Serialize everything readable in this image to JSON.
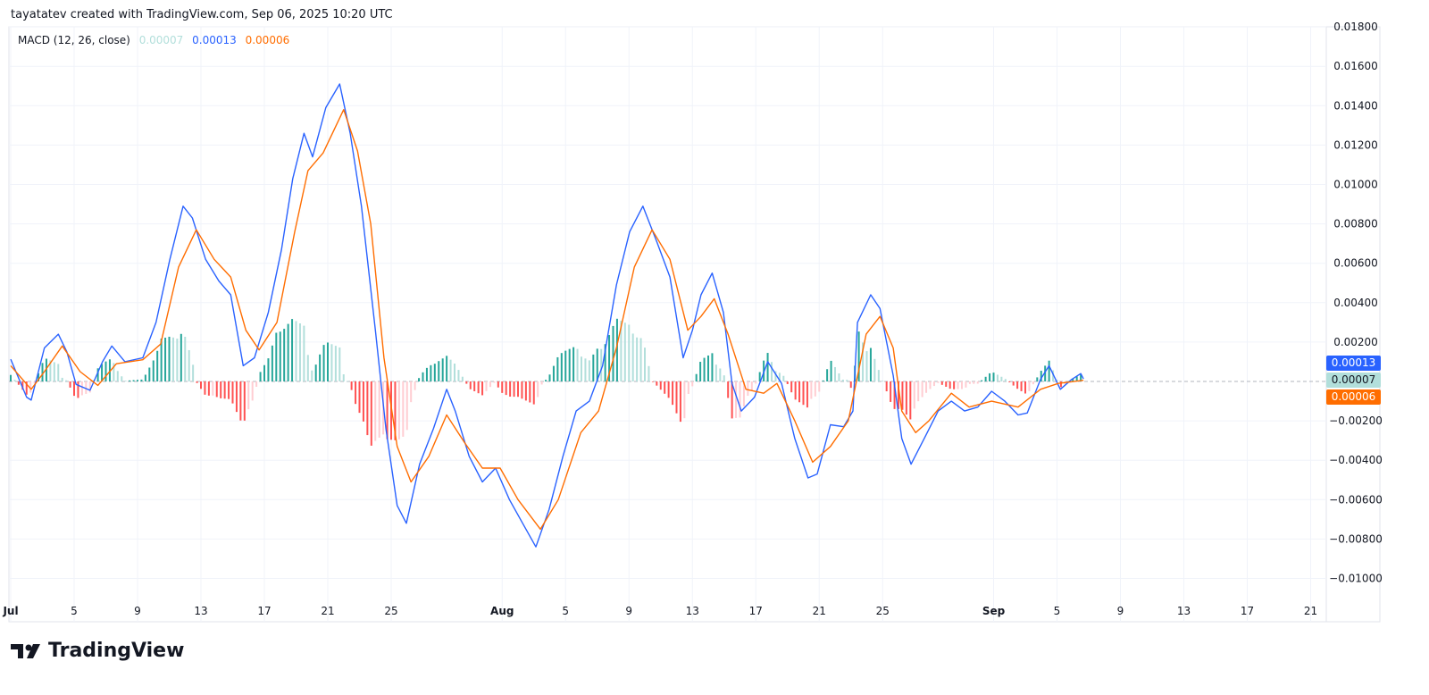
{
  "credit": "tayatatev created with TradingView.com, Sep 06, 2025 10:20 UTC",
  "legend": {
    "label": "MACD (12, 26, close)",
    "histogram": "0.00007",
    "macd": "0.00013",
    "signal": "0.00006"
  },
  "badges": {
    "macd": "0.00013",
    "histogram": "0.00007",
    "signal": "0.00006"
  },
  "logo": "TradingView",
  "colors": {
    "macd": "#2962ff",
    "signal": "#ff6d00",
    "hist_pos_strong": "#26a69a",
    "hist_pos_weak": "#b2dfdb",
    "hist_neg_strong": "#ff5252",
    "hist_neg_weak": "#ffcdd2",
    "grid": "#f0f3fa"
  },
  "chart_data": {
    "type": "line",
    "title": "MACD (12, 26, close)",
    "xlim": [
      "2025-07-01T00:00",
      "2025-09-22T00:00"
    ],
    "ylim": [
      -0.0108,
      0.018
    ],
    "grid": true,
    "y_ticks": [
      {
        "value": 0.018,
        "label": "0.01800"
      },
      {
        "value": 0.016,
        "label": "0.01600"
      },
      {
        "value": 0.014,
        "label": "0.01400"
      },
      {
        "value": 0.012,
        "label": "0.01200"
      },
      {
        "value": 0.01,
        "label": "0.01000"
      },
      {
        "value": 0.008,
        "label": "0.00800"
      },
      {
        "value": 0.006,
        "label": "0.00600"
      },
      {
        "value": 0.004,
        "label": "0.00400"
      },
      {
        "value": 0.002,
        "label": "0.00200"
      },
      {
        "value": -0.002,
        "label": "−0.00200"
      },
      {
        "value": -0.004,
        "label": "−0.00400"
      },
      {
        "value": -0.006,
        "label": "−0.00600"
      },
      {
        "value": -0.008,
        "label": "−0.00800"
      },
      {
        "value": -0.01,
        "label": "−0.01000"
      }
    ],
    "x_ticks": [
      {
        "date": "2025-07-01",
        "label": "Jul",
        "bold": true
      },
      {
        "date": "2025-07-05",
        "label": "5"
      },
      {
        "date": "2025-07-09",
        "label": "9"
      },
      {
        "date": "2025-07-13",
        "label": "13"
      },
      {
        "date": "2025-07-17",
        "label": "17"
      },
      {
        "date": "2025-07-21",
        "label": "21"
      },
      {
        "date": "2025-07-25",
        "label": "25"
      },
      {
        "date": "2025-08-01",
        "label": "Aug",
        "bold": true
      },
      {
        "date": "2025-08-05",
        "label": "5"
      },
      {
        "date": "2025-08-09",
        "label": "9"
      },
      {
        "date": "2025-08-13",
        "label": "13"
      },
      {
        "date": "2025-08-17",
        "label": "17"
      },
      {
        "date": "2025-08-21",
        "label": "21"
      },
      {
        "date": "2025-08-25",
        "label": "25"
      },
      {
        "date": "2025-09-01",
        "label": "Sep",
        "bold": true
      },
      {
        "date": "2025-09-05",
        "label": "5"
      },
      {
        "date": "2025-09-09",
        "label": "9"
      },
      {
        "date": "2025-09-13",
        "label": "13"
      },
      {
        "date": "2025-09-17",
        "label": "17"
      },
      {
        "date": "2025-09-21",
        "label": "21"
      }
    ],
    "series": [
      {
        "name": "MACD",
        "color": "#2962ff",
        "points": [
          [
            "2025-07-01T00:00",
            0.00113
          ],
          [
            "2025-07-02T00:00",
            -0.0008
          ],
          [
            "2025-07-02T07:00",
            -0.00095
          ],
          [
            "2025-07-03T03:00",
            0.0017
          ],
          [
            "2025-07-04T00:00",
            0.0024
          ],
          [
            "2025-07-04T13:00",
            0.0015
          ],
          [
            "2025-07-05T03:00",
            -0.00015
          ],
          [
            "2025-07-06T00:00",
            -0.00045
          ],
          [
            "2025-07-06T19:00",
            0.001
          ],
          [
            "2025-07-07T09:00",
            0.0018
          ],
          [
            "2025-07-08T05:00",
            0.001
          ],
          [
            "2025-07-09T08:00",
            0.0012
          ],
          [
            "2025-07-10T04:00",
            0.003
          ],
          [
            "2025-07-11T01:00",
            0.0062
          ],
          [
            "2025-07-11T21:00",
            0.0089
          ],
          [
            "2025-07-12T11:00",
            0.0083
          ],
          [
            "2025-07-13T07:00",
            0.0062
          ],
          [
            "2025-07-14T03:00",
            0.0051
          ],
          [
            "2025-07-14T21:00",
            0.0044
          ],
          [
            "2025-07-15T16:00",
            0.0008
          ],
          [
            "2025-07-16T09:00",
            0.0012
          ],
          [
            "2025-07-17T06:00",
            0.0035
          ],
          [
            "2025-07-18T02:00",
            0.0067
          ],
          [
            "2025-07-18T19:00",
            0.0103
          ],
          [
            "2025-07-19T12:00",
            0.0126
          ],
          [
            "2025-07-20T01:00",
            0.0114
          ],
          [
            "2025-07-20T21:00",
            0.0139
          ],
          [
            "2025-07-21T18:00",
            0.0151
          ],
          [
            "2025-07-22T10:00",
            0.0126
          ],
          [
            "2025-07-23T03:00",
            0.0089
          ],
          [
            "2025-07-24T00:00",
            0.0026
          ],
          [
            "2025-07-24T16:00",
            -0.0024
          ],
          [
            "2025-07-25T09:00",
            -0.0063
          ],
          [
            "2025-07-25T23:00",
            -0.0072
          ],
          [
            "2025-07-26T19:00",
            -0.0042
          ],
          [
            "2025-07-27T16:00",
            -0.0024
          ],
          [
            "2025-07-28T12:00",
            -0.0004
          ],
          [
            "2025-07-29T01:00",
            -0.0015
          ],
          [
            "2025-07-29T22:00",
            -0.0038
          ],
          [
            "2025-07-30T18:00",
            -0.0051
          ],
          [
            "2025-07-31T14:00",
            -0.0044
          ],
          [
            "2025-08-01T11:00",
            -0.006
          ],
          [
            "2025-08-02T07:00",
            -0.0072
          ],
          [
            "2025-08-03T03:00",
            -0.0084
          ],
          [
            "2025-08-03T23:00",
            -0.0065
          ],
          [
            "2025-08-04T20:00",
            -0.0038
          ],
          [
            "2025-08-05T16:00",
            -0.0015
          ],
          [
            "2025-08-06T12:00",
            -0.001
          ],
          [
            "2025-08-07T08:00",
            0.0008
          ],
          [
            "2025-08-08T05:00",
            0.0049
          ],
          [
            "2025-08-09T01:00",
            0.0076
          ],
          [
            "2025-08-09T21:00",
            0.0089
          ],
          [
            "2025-08-10T18:00",
            0.0071
          ],
          [
            "2025-08-11T14:00",
            0.0053
          ],
          [
            "2025-08-12T10:00",
            0.0012
          ],
          [
            "2025-08-13T00:00",
            0.0026
          ],
          [
            "2025-08-13T13:00",
            0.0044
          ],
          [
            "2025-08-14T06:00",
            0.0055
          ],
          [
            "2025-08-14T23:00",
            0.0035
          ],
          [
            "2025-08-15T12:00",
            -0.0001
          ],
          [
            "2025-08-16T02:00",
            -0.0015
          ],
          [
            "2025-08-16T22:00",
            -0.0008
          ],
          [
            "2025-08-17T18:00",
            0.001
          ],
          [
            "2025-08-18T15:00",
            -0.0001
          ],
          [
            "2025-08-19T11:00",
            -0.0029
          ],
          [
            "2025-08-20T07:00",
            -0.0049
          ],
          [
            "2025-08-20T21:00",
            -0.0047
          ],
          [
            "2025-08-21T17:00",
            -0.0022
          ],
          [
            "2025-08-22T13:00",
            -0.0023
          ],
          [
            "2025-08-23T03:00",
            -0.0015
          ],
          [
            "2025-08-23T10:00",
            0.003
          ],
          [
            "2025-08-24T06:00",
            0.0044
          ],
          [
            "2025-08-24T20:00",
            0.0037
          ],
          [
            "2025-08-25T16:00",
            0.0003
          ],
          [
            "2025-08-26T05:00",
            -0.0029
          ],
          [
            "2025-08-26T19:00",
            -0.0042
          ],
          [
            "2025-08-27T15:00",
            -0.0029
          ],
          [
            "2025-08-28T12:00",
            -0.0015
          ],
          [
            "2025-08-29T08:00",
            -0.001
          ],
          [
            "2025-08-30T04:00",
            -0.0015
          ],
          [
            "2025-08-31T00:00",
            -0.0013
          ],
          [
            "2025-08-31T21:00",
            -0.0005
          ],
          [
            "2025-09-01T17:00",
            -0.001
          ],
          [
            "2025-09-02T13:00",
            -0.0017
          ],
          [
            "2025-09-03T03:00",
            -0.0016
          ],
          [
            "2025-09-03T23:00",
            0.0001
          ],
          [
            "2025-09-04T12:00",
            0.0008
          ],
          [
            "2025-09-05T05:00",
            -0.0004
          ],
          [
            "2025-09-05T22:00",
            0.0001
          ],
          [
            "2025-09-06T12:00",
            0.0004
          ],
          [
            "2025-09-06T16:00",
            0.00013
          ]
        ]
      },
      {
        "name": "Signal",
        "color": "#ff6d00",
        "points": [
          [
            "2025-07-01T00:00",
            0.0008
          ],
          [
            "2025-07-02T07:00",
            -0.0004
          ],
          [
            "2025-07-03T03:00",
            0.0005
          ],
          [
            "2025-07-04T06:00",
            0.0018
          ],
          [
            "2025-07-05T09:00",
            0.0005
          ],
          [
            "2025-07-06T12:00",
            -0.0002
          ],
          [
            "2025-07-07T16:00",
            0.0009
          ],
          [
            "2025-07-09T08:00",
            0.0011
          ],
          [
            "2025-07-10T11:00",
            0.0019
          ],
          [
            "2025-07-11T14:00",
            0.0058
          ],
          [
            "2025-07-12T17:00",
            0.0077
          ],
          [
            "2025-07-13T20:00",
            0.0062
          ],
          [
            "2025-07-14T21:00",
            0.0053
          ],
          [
            "2025-07-15T20:00",
            0.0026
          ],
          [
            "2025-07-16T16:00",
            0.0016
          ],
          [
            "2025-07-17T19:00",
            0.003
          ],
          [
            "2025-07-18T22:00",
            0.0076
          ],
          [
            "2025-07-19T18:00",
            0.0107
          ],
          [
            "2025-07-20T17:00",
            0.0116
          ],
          [
            "2025-07-22T00:00",
            0.0138
          ],
          [
            "2025-07-22T21:00",
            0.0117
          ],
          [
            "2025-07-23T17:00",
            0.008
          ],
          [
            "2025-07-24T13:00",
            0.0012
          ],
          [
            "2025-07-25T09:00",
            -0.0033
          ],
          [
            "2025-07-26T06:00",
            -0.0051
          ],
          [
            "2025-07-27T09:00",
            -0.0038
          ],
          [
            "2025-07-28T12:00",
            -0.0017
          ],
          [
            "2025-07-29T15:00",
            -0.0031
          ],
          [
            "2025-07-30T18:00",
            -0.0044
          ],
          [
            "2025-07-31T21:00",
            -0.0044
          ],
          [
            "2025-08-02T00:00",
            -0.006
          ],
          [
            "2025-08-03T10:00",
            -0.0075
          ],
          [
            "2025-08-04T13:00",
            -0.006
          ],
          [
            "2025-08-05T23:00",
            -0.0026
          ],
          [
            "2025-08-07T02:00",
            -0.0015
          ],
          [
            "2025-08-08T05:00",
            0.0017
          ],
          [
            "2025-08-09T08:00",
            0.0058
          ],
          [
            "2025-08-10T11:00",
            0.0077
          ],
          [
            "2025-08-11T14:00",
            0.0062
          ],
          [
            "2025-08-12T17:00",
            0.0026
          ],
          [
            "2025-08-13T13:00",
            0.0033
          ],
          [
            "2025-08-14T09:00",
            0.0042
          ],
          [
            "2025-08-15T06:00",
            0.0024
          ],
          [
            "2025-08-16T09:00",
            -0.0004
          ],
          [
            "2025-08-17T12:00",
            -0.0006
          ],
          [
            "2025-08-18T08:00",
            -0.0001
          ],
          [
            "2025-08-19T11:00",
            -0.002
          ],
          [
            "2025-08-20T14:00",
            -0.0041
          ],
          [
            "2025-08-21T17:00",
            -0.0033
          ],
          [
            "2025-08-22T20:00",
            -0.002
          ],
          [
            "2025-08-23T23:00",
            0.0024
          ],
          [
            "2025-08-24T20:00",
            0.0033
          ],
          [
            "2025-08-25T16:00",
            0.0017
          ],
          [
            "2025-08-26T05:00",
            -0.0015
          ],
          [
            "2025-08-27T02:00",
            -0.0026
          ],
          [
            "2025-08-27T22:00",
            -0.002
          ],
          [
            "2025-08-29T08:00",
            -0.0006
          ],
          [
            "2025-08-30T11:00",
            -0.0013
          ],
          [
            "2025-08-31T21:00",
            -0.001
          ],
          [
            "2025-09-02T13:00",
            -0.0013
          ],
          [
            "2025-09-03T23:00",
            -0.0004
          ],
          [
            "2025-09-05T02:00",
            -0.0001
          ],
          [
            "2025-09-06T16:00",
            6e-05
          ]
        ]
      }
    ],
    "histogram": {
      "name": "Histogram",
      "definition": "MACD − Signal"
    }
  }
}
